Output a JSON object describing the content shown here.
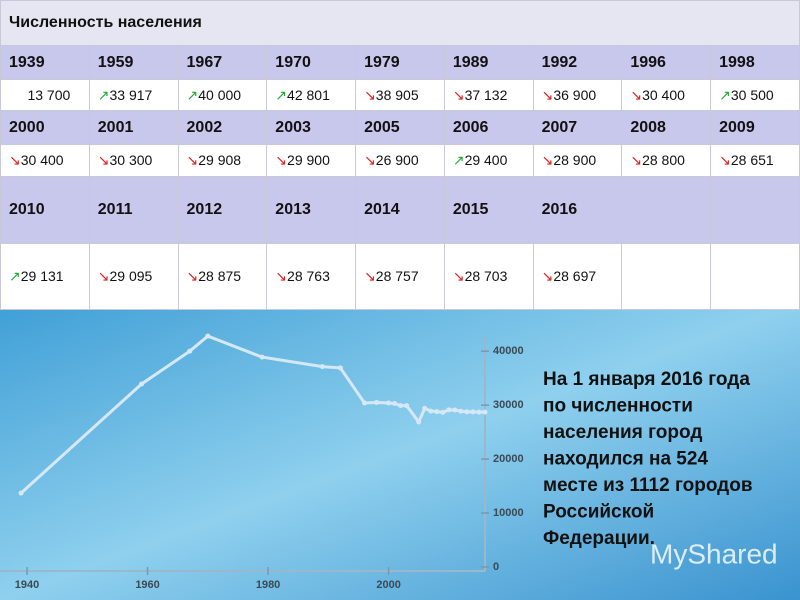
{
  "title": "Численность населения",
  "table": {
    "rows": [
      [
        "1939",
        "1959",
        "1967",
        "1970",
        "1979",
        "1989",
        "1992",
        "1996",
        "1998"
      ],
      [
        "13 700",
        "↗33 917",
        "↗40 000",
        "↗42 801",
        "↘38 905",
        "↘37 132",
        "↘36 900",
        "↘30 400",
        "↗30 500"
      ],
      [
        "2000",
        "2001",
        "2002",
        "2003",
        "2005",
        "2006",
        "2007",
        "2008",
        "2009"
      ],
      [
        "↘30 400",
        "↘30 300",
        "↘29 908",
        "↘29 900",
        "↘26 900",
        "↗29 400",
        "↘28 900",
        "↘28 800",
        "↘28 651"
      ],
      [
        "2010",
        "2011",
        "2012",
        "2013",
        "2014",
        "2015",
        "2016"
      ],
      [
        "↗29 131",
        "↘29 095",
        "↘28 875",
        "↘28 763",
        "↘28 757",
        "↘28 703",
        "↘28 697"
      ]
    ]
  },
  "chart_data": {
    "type": "line",
    "x": [
      1939,
      1959,
      1967,
      1970,
      1979,
      1989,
      1992,
      1996,
      1998,
      2000,
      2001,
      2002,
      2003,
      2005,
      2006,
      2007,
      2008,
      2009,
      2010,
      2011,
      2012,
      2013,
      2014,
      2015,
      2016
    ],
    "series": [
      {
        "color": "#d6e8f6",
        "values": [
          13700,
          33917,
          40000,
          42801,
          38905,
          37132,
          36900,
          30400,
          30500,
          30400,
          30300,
          29908,
          29900,
          26900,
          29400,
          28900,
          28800,
          28651,
          29131,
          29095,
          28875,
          28763,
          28757,
          28703,
          28697
        ]
      }
    ],
    "xlim": [
      1938,
      2016
    ],
    "xticks": [
      1940,
      1960,
      1980,
      2000
    ],
    "ylim": [
      0,
      43000
    ],
    "yticks": [
      0,
      10000,
      20000,
      30000,
      40000
    ]
  },
  "caption": [
    "На 1 января 2016 года",
    "по численности",
    "населения город",
    "находился на 524",
    "месте из 1112 городов",
    "Российской",
    "Федерации."
  ],
  "watermark": "MyShared"
}
